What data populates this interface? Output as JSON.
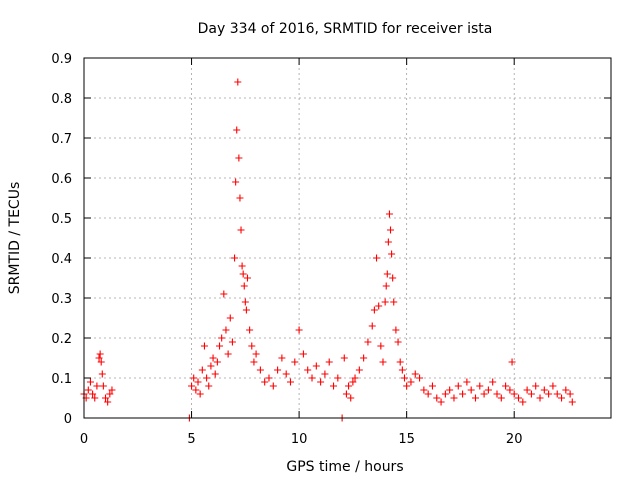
{
  "chart_data": {
    "type": "scatter",
    "title": "Day 334 of 2016, SRMTID for receiver ista",
    "xlabel": "GPS time / hours",
    "ylabel": "SRMTID / TECUs",
    "xlim": [
      0,
      24.5
    ],
    "ylim": [
      0,
      0.9
    ],
    "xticks": [
      0,
      5,
      10,
      15,
      20
    ],
    "xtick_labels": [
      "0",
      "5",
      "10",
      "15",
      "20"
    ],
    "yticks": [
      0,
      0.1,
      0.2,
      0.3,
      0.4,
      0.5,
      0.6,
      0.7,
      0.8,
      0.9
    ],
    "ytick_labels": [
      "0",
      "0.1",
      "0.2",
      "0.3",
      "0.4",
      "0.5",
      "0.6",
      "0.7",
      "0.8",
      "0.9"
    ],
    "grid": true,
    "marker": "+",
    "series": [
      {
        "name": "SRMTID",
        "color": "#ff0000",
        "x": [
          0.0,
          0.1,
          0.2,
          0.3,
          0.4,
          0.5,
          0.6,
          0.7,
          0.75,
          0.8,
          0.85,
          0.9,
          1.0,
          1.1,
          1.2,
          1.3,
          4.9,
          5.0,
          5.1,
          5.2,
          5.3,
          5.4,
          5.5,
          5.6,
          5.7,
          5.8,
          5.9,
          6.0,
          6.1,
          6.2,
          6.3,
          6.4,
          6.5,
          6.6,
          6.7,
          6.8,
          6.9,
          7.0,
          7.05,
          7.1,
          7.15,
          7.2,
          7.25,
          7.3,
          7.35,
          7.4,
          7.45,
          7.5,
          7.55,
          7.6,
          7.7,
          7.8,
          7.9,
          8.0,
          8.2,
          8.4,
          8.6,
          8.8,
          9.0,
          9.2,
          9.4,
          9.6,
          9.8,
          10.0,
          10.2,
          10.4,
          10.6,
          10.8,
          11.0,
          11.2,
          11.4,
          11.6,
          11.8,
          12.0,
          12.1,
          12.2,
          12.3,
          12.4,
          12.5,
          12.6,
          12.8,
          13.0,
          13.2,
          13.4,
          13.5,
          13.6,
          13.7,
          13.8,
          13.9,
          14.0,
          14.05,
          14.1,
          14.15,
          14.2,
          14.25,
          14.3,
          14.35,
          14.4,
          14.5,
          14.6,
          14.7,
          14.8,
          14.9,
          15.0,
          15.2,
          15.4,
          15.6,
          15.8,
          16.0,
          16.2,
          16.4,
          16.6,
          16.8,
          17.0,
          17.2,
          17.4,
          17.6,
          17.8,
          18.0,
          18.2,
          18.4,
          18.6,
          18.8,
          19.0,
          19.2,
          19.4,
          19.6,
          19.8,
          19.9,
          20.0,
          20.2,
          20.4,
          20.6,
          20.8,
          21.0,
          21.2,
          21.4,
          21.6,
          21.8,
          22.0,
          22.2,
          22.4,
          22.6,
          22.7
        ],
        "y": [
          0.06,
          0.05,
          0.07,
          0.09,
          0.06,
          0.05,
          0.08,
          0.15,
          0.16,
          0.14,
          0.11,
          0.08,
          0.05,
          0.04,
          0.06,
          0.07,
          0.0,
          0.08,
          0.1,
          0.07,
          0.09,
          0.06,
          0.12,
          0.18,
          0.1,
          0.08,
          0.13,
          0.15,
          0.11,
          0.14,
          0.18,
          0.2,
          0.31,
          0.22,
          0.16,
          0.25,
          0.19,
          0.4,
          0.59,
          0.72,
          0.84,
          0.65,
          0.55,
          0.47,
          0.38,
          0.36,
          0.33,
          0.29,
          0.27,
          0.35,
          0.22,
          0.18,
          0.14,
          0.16,
          0.12,
          0.09,
          0.1,
          0.08,
          0.12,
          0.15,
          0.11,
          0.09,
          0.14,
          0.22,
          0.16,
          0.12,
          0.1,
          0.13,
          0.09,
          0.11,
          0.14,
          0.08,
          0.1,
          0.0,
          0.15,
          0.06,
          0.08,
          0.05,
          0.09,
          0.1,
          0.12,
          0.15,
          0.19,
          0.23,
          0.27,
          0.4,
          0.28,
          0.18,
          0.14,
          0.29,
          0.33,
          0.36,
          0.44,
          0.51,
          0.47,
          0.41,
          0.35,
          0.29,
          0.22,
          0.19,
          0.14,
          0.12,
          0.1,
          0.08,
          0.09,
          0.11,
          0.1,
          0.07,
          0.06,
          0.08,
          0.05,
          0.04,
          0.06,
          0.07,
          0.05,
          0.08,
          0.06,
          0.09,
          0.07,
          0.05,
          0.08,
          0.06,
          0.07,
          0.09,
          0.06,
          0.05,
          0.08,
          0.07,
          0.14,
          0.06,
          0.05,
          0.04,
          0.07,
          0.06,
          0.08,
          0.05,
          0.07,
          0.06,
          0.08,
          0.06,
          0.05,
          0.07,
          0.06,
          0.04
        ]
      }
    ]
  }
}
